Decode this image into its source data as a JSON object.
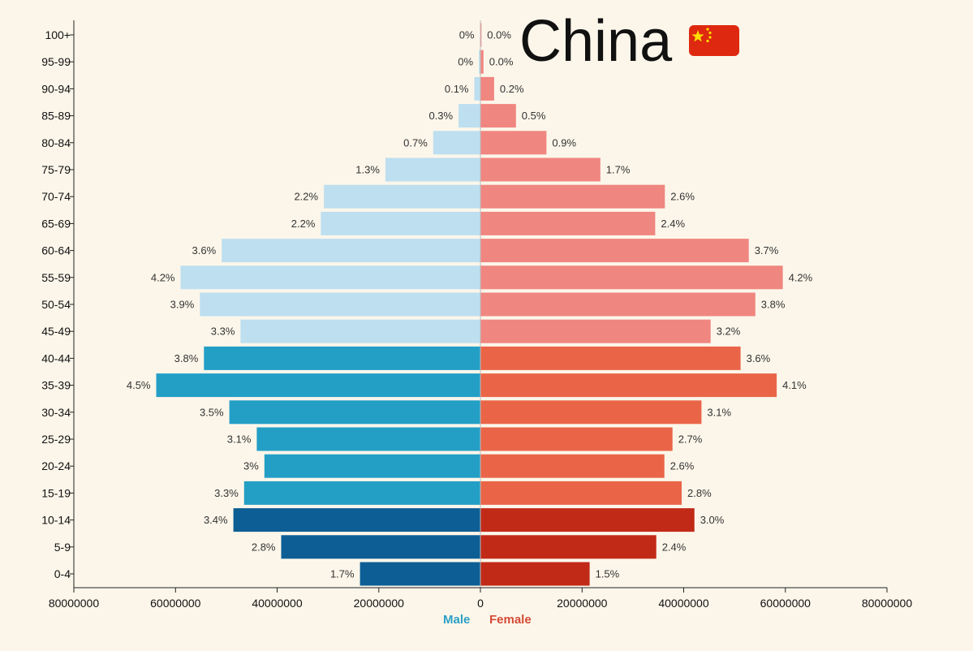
{
  "title": "China",
  "flag_icon": "china-flag-icon",
  "colors": {
    "background": "#fcf6ea",
    "male_young": "#0d5e94",
    "male_mid": "#239fc6",
    "male_old": "#bddff0",
    "female_young": "#c12a17",
    "female_mid": "#ea6548",
    "female_old": "#f08680",
    "flag_red": "#de2910",
    "flag_yellow": "#ffde00"
  },
  "chart_data": {
    "type": "bar",
    "orientation": "horizontal-population-pyramid",
    "title": "China",
    "categories": [
      "100+",
      "95-99",
      "90-94",
      "85-89",
      "80-84",
      "75-79",
      "70-74",
      "65-69",
      "60-64",
      "55-59",
      "50-54",
      "45-49",
      "40-44",
      "35-39",
      "30-34",
      "25-29",
      "20-24",
      "15-19",
      "10-14",
      "5-9",
      "0-4"
    ],
    "series": [
      {
        "name": "Male",
        "values": [
          60000,
          300000,
          1200000,
          4300000,
          9300000,
          18700000,
          30800000,
          31400000,
          50900000,
          59000000,
          55200000,
          47200000,
          54400000,
          63800000,
          49400000,
          44000000,
          42500000,
          46500000,
          48600000,
          39200000,
          23700000
        ],
        "labels": [
          "0%",
          "0%",
          "0.1%",
          "0.3%",
          "0.7%",
          "1.3%",
          "2.2%",
          "2.2%",
          "3.6%",
          "4.2%",
          "3.9%",
          "3.3%",
          "3.8%",
          "4.5%",
          "3.5%",
          "3.1%",
          "3%",
          "3.3%",
          "3.4%",
          "2.8%",
          "1.7%"
        ]
      },
      {
        "name": "Female",
        "values": [
          200000,
          600000,
          2700000,
          7000000,
          13000000,
          23600000,
          36300000,
          34400000,
          52800000,
          59500000,
          54100000,
          45300000,
          51200000,
          58300000,
          43500000,
          37800000,
          36200000,
          39600000,
          42100000,
          34600000,
          21500000
        ],
        "labels": [
          "0.0%",
          "0.0%",
          "0.2%",
          "0.5%",
          "0.9%",
          "1.7%",
          "2.6%",
          "2.4%",
          "3.7%",
          "4.2%",
          "3.8%",
          "3.2%",
          "3.6%",
          "4.1%",
          "3.1%",
          "2.7%",
          "2.6%",
          "2.8%",
          "3.0%",
          "2.4%",
          "1.5%"
        ]
      }
    ],
    "x_ticks": [
      "80000000",
      "60000000",
      "40000000",
      "20000000",
      "0",
      "20000000",
      "40000000",
      "60000000",
      "80000000"
    ],
    "xlim": [
      -80000000,
      80000000
    ],
    "grid": false,
    "legend": {
      "position": "bottom-center",
      "entries": [
        "Male",
        "Female"
      ]
    }
  }
}
